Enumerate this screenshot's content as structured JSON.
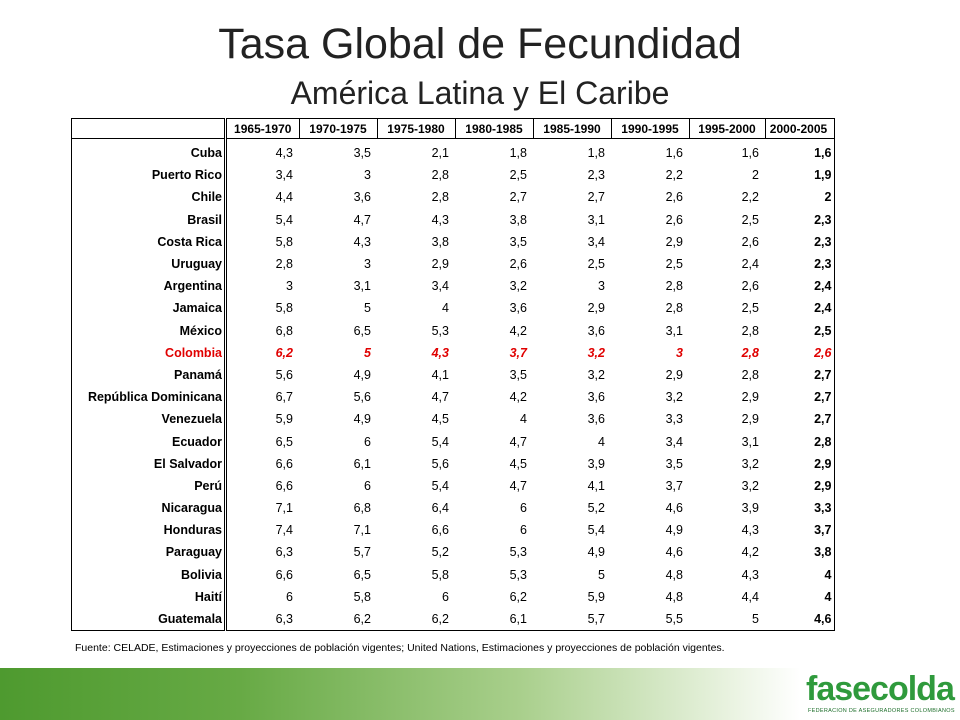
{
  "title": "Tasa Global de Fecundidad",
  "subtitle": "América Latina y El Caribe",
  "table": {
    "columns": [
      "1965-1970",
      "1970-1975",
      "1975-1980",
      "1980-1985",
      "1985-1990",
      "1990-1995",
      "1995-2000",
      "2000-2005"
    ],
    "rows": [
      {
        "country": "Cuba",
        "values": [
          "4,3",
          "3,5",
          "2,1",
          "1,8",
          "1,8",
          "1,6",
          "1,6",
          "1,6"
        ]
      },
      {
        "country": "Puerto Rico",
        "values": [
          "3,4",
          "3",
          "2,8",
          "2,5",
          "2,3",
          "2,2",
          "2",
          "1,9"
        ]
      },
      {
        "country": "Chile",
        "values": [
          "4,4",
          "3,6",
          "2,8",
          "2,7",
          "2,7",
          "2,6",
          "2,2",
          "2"
        ]
      },
      {
        "country": "Brasil",
        "values": [
          "5,4",
          "4,7",
          "4,3",
          "3,8",
          "3,1",
          "2,6",
          "2,5",
          "2,3"
        ]
      },
      {
        "country": "Costa Rica",
        "values": [
          "5,8",
          "4,3",
          "3,8",
          "3,5",
          "3,4",
          "2,9",
          "2,6",
          "2,3"
        ]
      },
      {
        "country": "Uruguay",
        "values": [
          "2,8",
          "3",
          "2,9",
          "2,6",
          "2,5",
          "2,5",
          "2,4",
          "2,3"
        ]
      },
      {
        "country": "Argentina",
        "values": [
          "3",
          "3,1",
          "3,4",
          "3,2",
          "3",
          "2,8",
          "2,6",
          "2,4"
        ]
      },
      {
        "country": "Jamaica",
        "values": [
          "5,8",
          "5",
          "4",
          "3,6",
          "2,9",
          "2,8",
          "2,5",
          "2,4"
        ]
      },
      {
        "country": "México",
        "values": [
          "6,8",
          "6,5",
          "5,3",
          "4,2",
          "3,6",
          "3,1",
          "2,8",
          "2,5"
        ]
      },
      {
        "country": "Colombia",
        "values": [
          "6,2",
          "5",
          "4,3",
          "3,7",
          "3,2",
          "3",
          "2,8",
          "2,6"
        ],
        "highlight": true
      },
      {
        "country": "Panamá",
        "values": [
          "5,6",
          "4,9",
          "4,1",
          "3,5",
          "3,2",
          "2,9",
          "2,8",
          "2,7"
        ]
      },
      {
        "country": "República Dominicana",
        "values": [
          "6,7",
          "5,6",
          "4,7",
          "4,2",
          "3,6",
          "3,2",
          "2,9",
          "2,7"
        ]
      },
      {
        "country": "Venezuela",
        "values": [
          "5,9",
          "4,9",
          "4,5",
          "4",
          "3,6",
          "3,3",
          "2,9",
          "2,7"
        ]
      },
      {
        "country": "Ecuador",
        "values": [
          "6,5",
          "6",
          "5,4",
          "4,7",
          "4",
          "3,4",
          "3,1",
          "2,8"
        ]
      },
      {
        "country": "El Salvador",
        "values": [
          "6,6",
          "6,1",
          "5,6",
          "4,5",
          "3,9",
          "3,5",
          "3,2",
          "2,9"
        ]
      },
      {
        "country": "Perú",
        "values": [
          "6,6",
          "6",
          "5,4",
          "4,7",
          "4,1",
          "3,7",
          "3,2",
          "2,9"
        ]
      },
      {
        "country": "Nicaragua",
        "values": [
          "7,1",
          "6,8",
          "6,4",
          "6",
          "5,2",
          "4,6",
          "3,9",
          "3,3"
        ]
      },
      {
        "country": "Honduras",
        "values": [
          "7,4",
          "7,1",
          "6,6",
          "6",
          "5,4",
          "4,9",
          "4,3",
          "3,7"
        ]
      },
      {
        "country": "Paraguay",
        "values": [
          "6,3",
          "5,7",
          "5,2",
          "5,3",
          "4,9",
          "4,6",
          "4,2",
          "3,8"
        ]
      },
      {
        "country": "Bolivia",
        "values": [
          "6,6",
          "6,5",
          "5,8",
          "5,3",
          "5",
          "4,8",
          "4,3",
          "4"
        ]
      },
      {
        "country": "Haití",
        "values": [
          "6",
          "5,8",
          "6",
          "6,2",
          "5,9",
          "4,8",
          "4,4",
          "4"
        ]
      },
      {
        "country": "Guatemala",
        "values": [
          "6,3",
          "6,2",
          "6,2",
          "6,1",
          "5,7",
          "5,5",
          "5",
          "4,6"
        ]
      }
    ]
  },
  "source": "Fuente: CELADE, Estimaciones y proyecciones de población vigentes; United Nations, Estimaciones y proyecciones de población vigentes.",
  "logo": {
    "name": "fasecolda",
    "tagline": "FEDERACION DE ASEGURADORES COLOMBIANOS"
  },
  "colors": {
    "highlight": "#e00000",
    "brand_green": "#2f9a3c"
  }
}
